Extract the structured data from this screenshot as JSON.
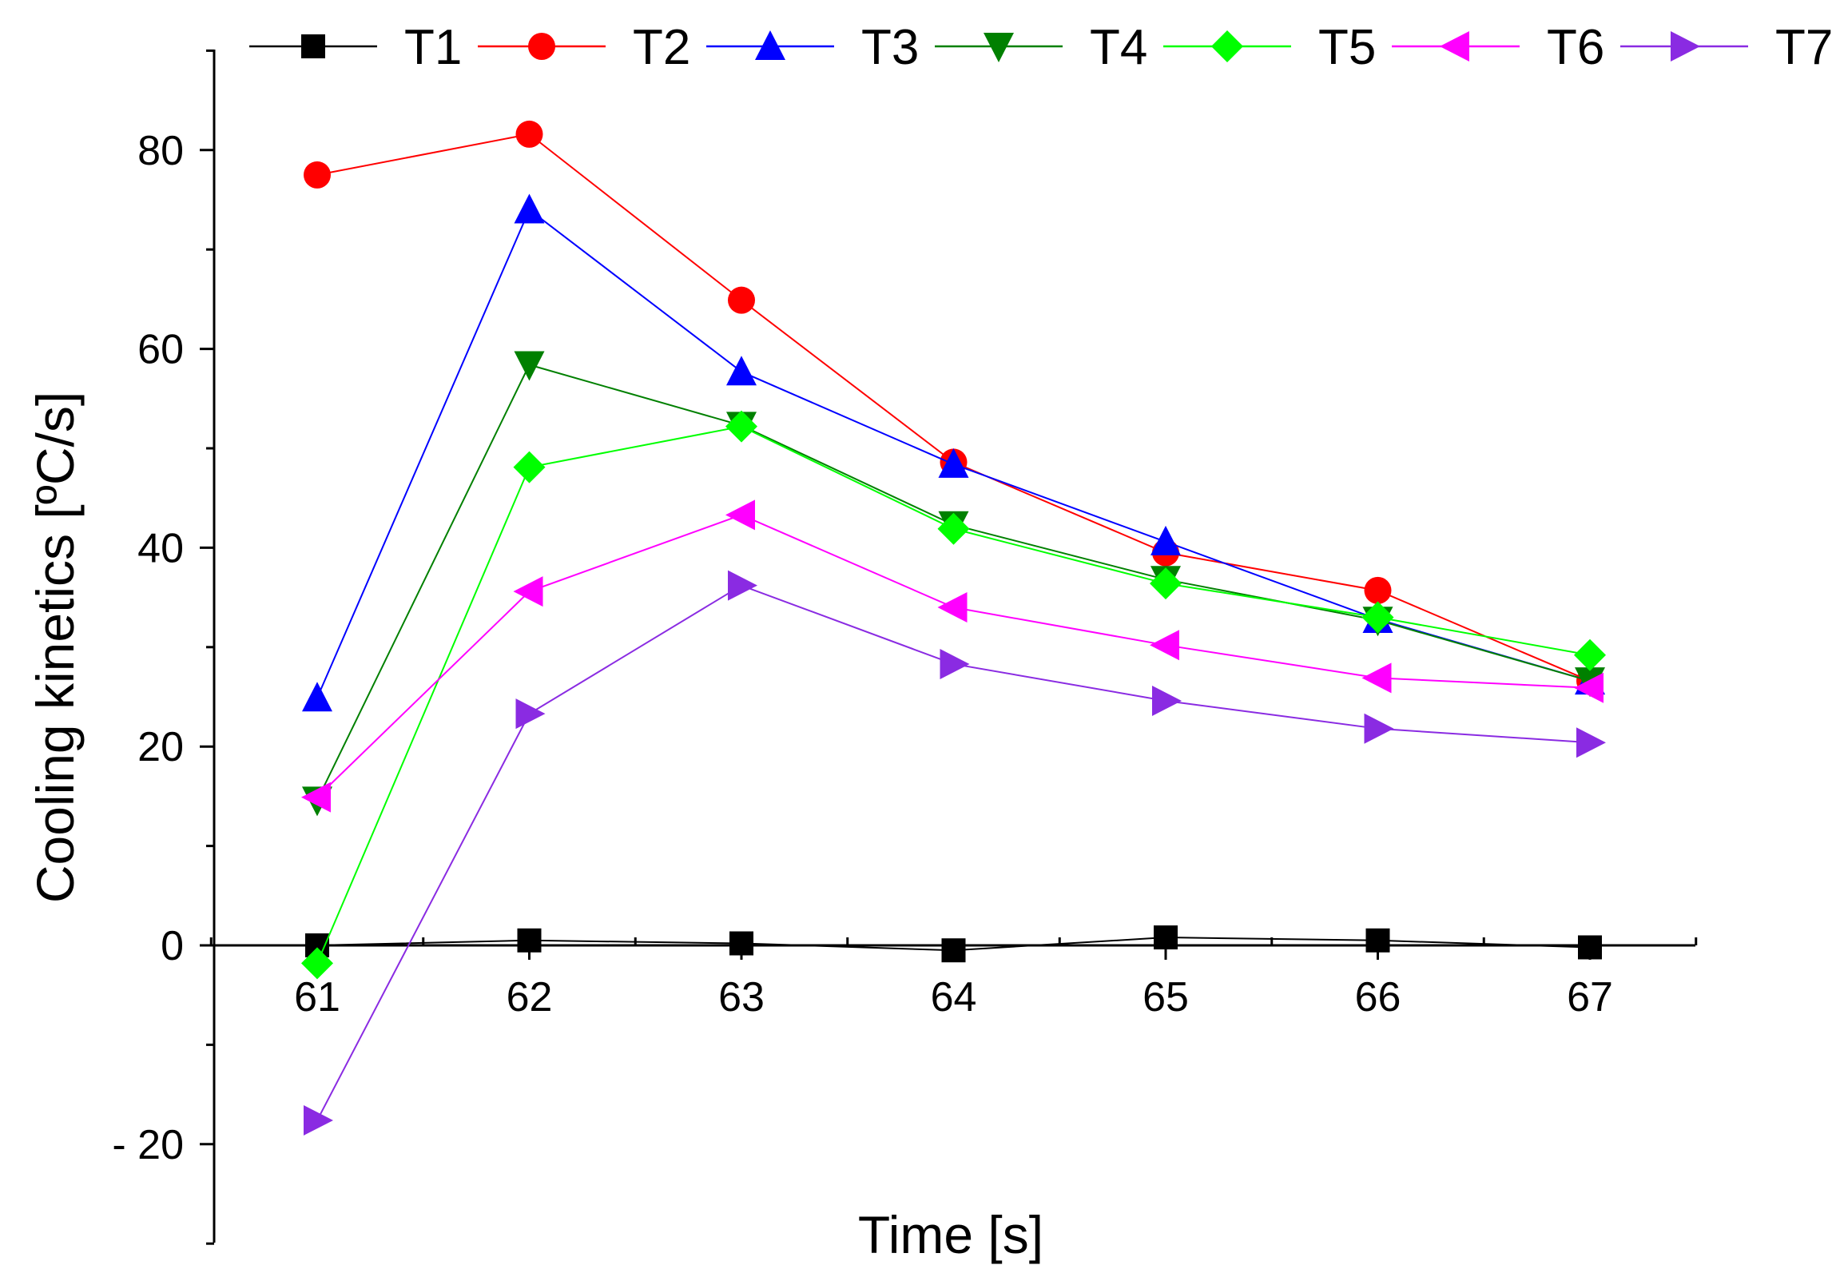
{
  "chart_data": {
    "type": "line",
    "title": "",
    "xlabel": "Time [s]",
    "ylabel": "Cooling kinetics [ºC/s]",
    "x": [
      61,
      62,
      63,
      64,
      65,
      66,
      67
    ],
    "xlim": [
      60.5,
      67.5
    ],
    "ylim": [
      -30,
      90
    ],
    "y_ticks": [
      -20,
      0,
      20,
      40,
      60,
      80
    ],
    "y_tick_labels": [
      "- 20",
      "0",
      "20",
      "40",
      "60",
      "80"
    ],
    "x_tick_labels": [
      "61",
      "62",
      "63",
      "64",
      "65",
      "66",
      "67"
    ],
    "grid": false,
    "legend_position": "top",
    "series": [
      {
        "name": "T1",
        "color": "#000000",
        "marker": "square",
        "values": [
          0,
          0.5,
          0.2,
          -0.5,
          0.8,
          0.5,
          -0.2
        ]
      },
      {
        "name": "T2",
        "color": "#ff0000",
        "marker": "circle",
        "values": [
          77.5,
          81.6,
          64.9,
          48.6,
          39.5,
          35.7,
          26.6
        ]
      },
      {
        "name": "T3",
        "color": "#0000ff",
        "marker": "triangle-up",
        "values": [
          24.9,
          74.0,
          57.7,
          48.4,
          40.6,
          32.8,
          26.6
        ]
      },
      {
        "name": "T4",
        "color": "#008000",
        "marker": "triangle-down",
        "values": [
          14.6,
          58.4,
          52.3,
          42.3,
          36.8,
          32.7,
          26.6
        ]
      },
      {
        "name": "T5",
        "color": "#00ff00",
        "marker": "diamond",
        "values": [
          -1.8,
          48.1,
          52.2,
          41.9,
          36.4,
          33.0,
          29.2
        ]
      },
      {
        "name": "T6",
        "color": "#ff00ff",
        "marker": "triangle-left",
        "values": [
          14.9,
          35.6,
          43.3,
          34.0,
          30.2,
          26.9,
          25.9
        ]
      },
      {
        "name": "T7",
        "color": "#8a2be2",
        "marker": "triangle-right",
        "values": [
          -17.6,
          23.3,
          36.2,
          28.3,
          24.6,
          21.8,
          20.4
        ]
      }
    ]
  }
}
